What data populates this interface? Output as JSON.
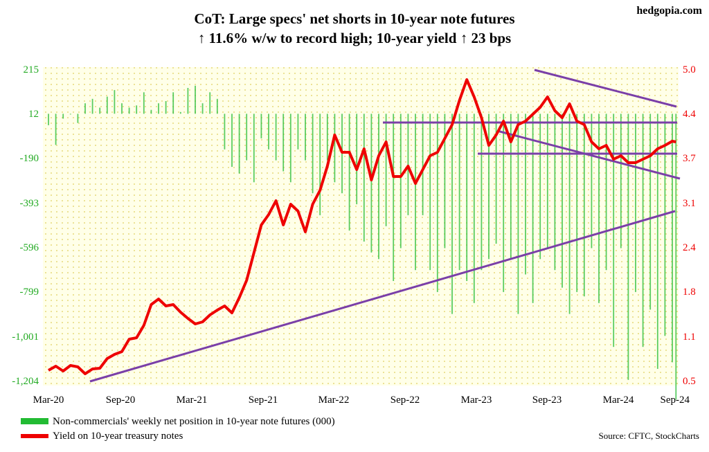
{
  "chart_data": {
    "type": "bar",
    "title_line1": "CoT: Large specs' net shorts in 10-year note futures",
    "title_line2": "↑ 11.6% w/w to record high; 10-year yield ↑ 23 bps",
    "watermark": "hedgopia.com",
    "source": "Source: CFTC, StockCharts",
    "x_ticks": [
      "Mar-20",
      "Sep-20",
      "Mar-21",
      "Sep-21",
      "Mar-22",
      "Sep-22",
      "Mar-23",
      "Sep-23",
      "Mar-24",
      "Sep-24"
    ],
    "y_left_ticks": [
      "215",
      "12",
      "-190",
      "-393",
      "-596",
      "-799",
      "-1,001",
      "-1,204"
    ],
    "y_right_ticks": [
      "5.0",
      "4.4",
      "3.7",
      "3.1",
      "2.4",
      "1.8",
      "1.1",
      "0.5"
    ],
    "ylim_left": [
      -1204,
      215
    ],
    "ylim_right": [
      0.5,
      5.0
    ],
    "legend": {
      "bars": "Non-commercials' weekly net position in 10-year note futures (000)",
      "line": "Yield on 10-year treasury notes"
    },
    "colors": {
      "bars": "#22bb33",
      "line": "#ee0000",
      "trendlines": "#7a3fa8",
      "background": "#ffffe8",
      "dots": "#e6d97a",
      "left_axis": "#22aa22",
      "right_axis": "#ee0000"
    },
    "series": [
      {
        "name": "Non-commercials' weekly net position in 10-year note futures (000)",
        "kind": "bar",
        "weeks": [
          0,
          4,
          8,
          12,
          16,
          20,
          24,
          28,
          32,
          36,
          40,
          44,
          48,
          52,
          56,
          60,
          64,
          68,
          72,
          76,
          80,
          84,
          88,
          92,
          96,
          100,
          104,
          108,
          112,
          116,
          120,
          124,
          128,
          132,
          136,
          140,
          144,
          148,
          152,
          156,
          160,
          164,
          168,
          172,
          176,
          180,
          184,
          188,
          192,
          196,
          200,
          204,
          208,
          212,
          216,
          220,
          224,
          228,
          232,
          236,
          240,
          244,
          248,
          252,
          256,
          260,
          264,
          268,
          272,
          276,
          280,
          284,
          288,
          292,
          296,
          300,
          304,
          308,
          312,
          316,
          320,
          324,
          328,
          332,
          336,
          340,
          342
        ],
        "values": [
          -40,
          -130,
          -10,
          10,
          -30,
          60,
          80,
          40,
          90,
          120,
          60,
          40,
          50,
          110,
          30,
          60,
          70,
          110,
          20,
          130,
          140,
          60,
          110,
          80,
          -150,
          -230,
          -260,
          -200,
          -300,
          -100,
          -150,
          -200,
          -250,
          -300,
          -150,
          -200,
          -350,
          -450,
          -200,
          -300,
          -350,
          -520,
          -400,
          -570,
          -620,
          -650,
          -500,
          -750,
          -600,
          -450,
          -700,
          -450,
          -700,
          -800,
          -600,
          -900,
          -700,
          -750,
          -850,
          -700,
          -650,
          -580,
          -800,
          -650,
          -900,
          -720,
          -850,
          -650,
          -600,
          -700,
          -780,
          -900,
          -800,
          -820,
          -600,
          -850,
          -700,
          -1050,
          -600,
          -1200,
          -800,
          -1050,
          -880,
          -1150,
          -1000,
          -1120,
          -1290
        ]
      },
      {
        "name": "Yield on 10-year treasury notes",
        "kind": "line",
        "weeks": [
          0,
          4,
          8,
          12,
          16,
          20,
          24,
          28,
          32,
          36,
          40,
          44,
          48,
          52,
          56,
          60,
          64,
          68,
          72,
          76,
          80,
          84,
          88,
          92,
          96,
          100,
          104,
          108,
          112,
          116,
          120,
          124,
          128,
          132,
          136,
          140,
          144,
          148,
          152,
          156,
          160,
          164,
          168,
          172,
          176,
          180,
          184,
          188,
          192,
          196,
          200,
          204,
          208,
          212,
          216,
          220,
          224,
          228,
          232,
          236,
          240,
          244,
          248,
          252,
          256,
          260,
          264,
          268,
          272,
          276,
          280,
          284,
          288,
          292,
          296,
          300,
          304,
          308,
          312,
          316,
          320,
          324,
          328,
          332,
          336,
          340,
          342
        ],
        "values": [
          0.65,
          0.71,
          0.64,
          0.72,
          0.7,
          0.6,
          0.67,
          0.68,
          0.82,
          0.88,
          0.92,
          1.1,
          1.12,
          1.3,
          1.6,
          1.68,
          1.58,
          1.6,
          1.49,
          1.4,
          1.32,
          1.35,
          1.45,
          1.52,
          1.58,
          1.48,
          1.7,
          1.95,
          2.35,
          2.75,
          2.9,
          3.1,
          2.75,
          3.05,
          2.95,
          2.65,
          3.05,
          3.25,
          3.6,
          4.05,
          3.8,
          3.8,
          3.55,
          3.85,
          3.4,
          3.75,
          3.95,
          3.45,
          3.45,
          3.6,
          3.35,
          3.55,
          3.75,
          3.8,
          4.0,
          4.2,
          4.55,
          4.85,
          4.6,
          4.3,
          3.9,
          4.05,
          4.25,
          3.95,
          4.2,
          4.25,
          4.35,
          4.45,
          4.6,
          4.4,
          4.3,
          4.5,
          4.25,
          4.2,
          3.95,
          3.85,
          3.9,
          3.7,
          3.75,
          3.65,
          3.65,
          3.7,
          3.75,
          3.85,
          3.9,
          3.96,
          3.95
        ]
      }
    ]
  }
}
